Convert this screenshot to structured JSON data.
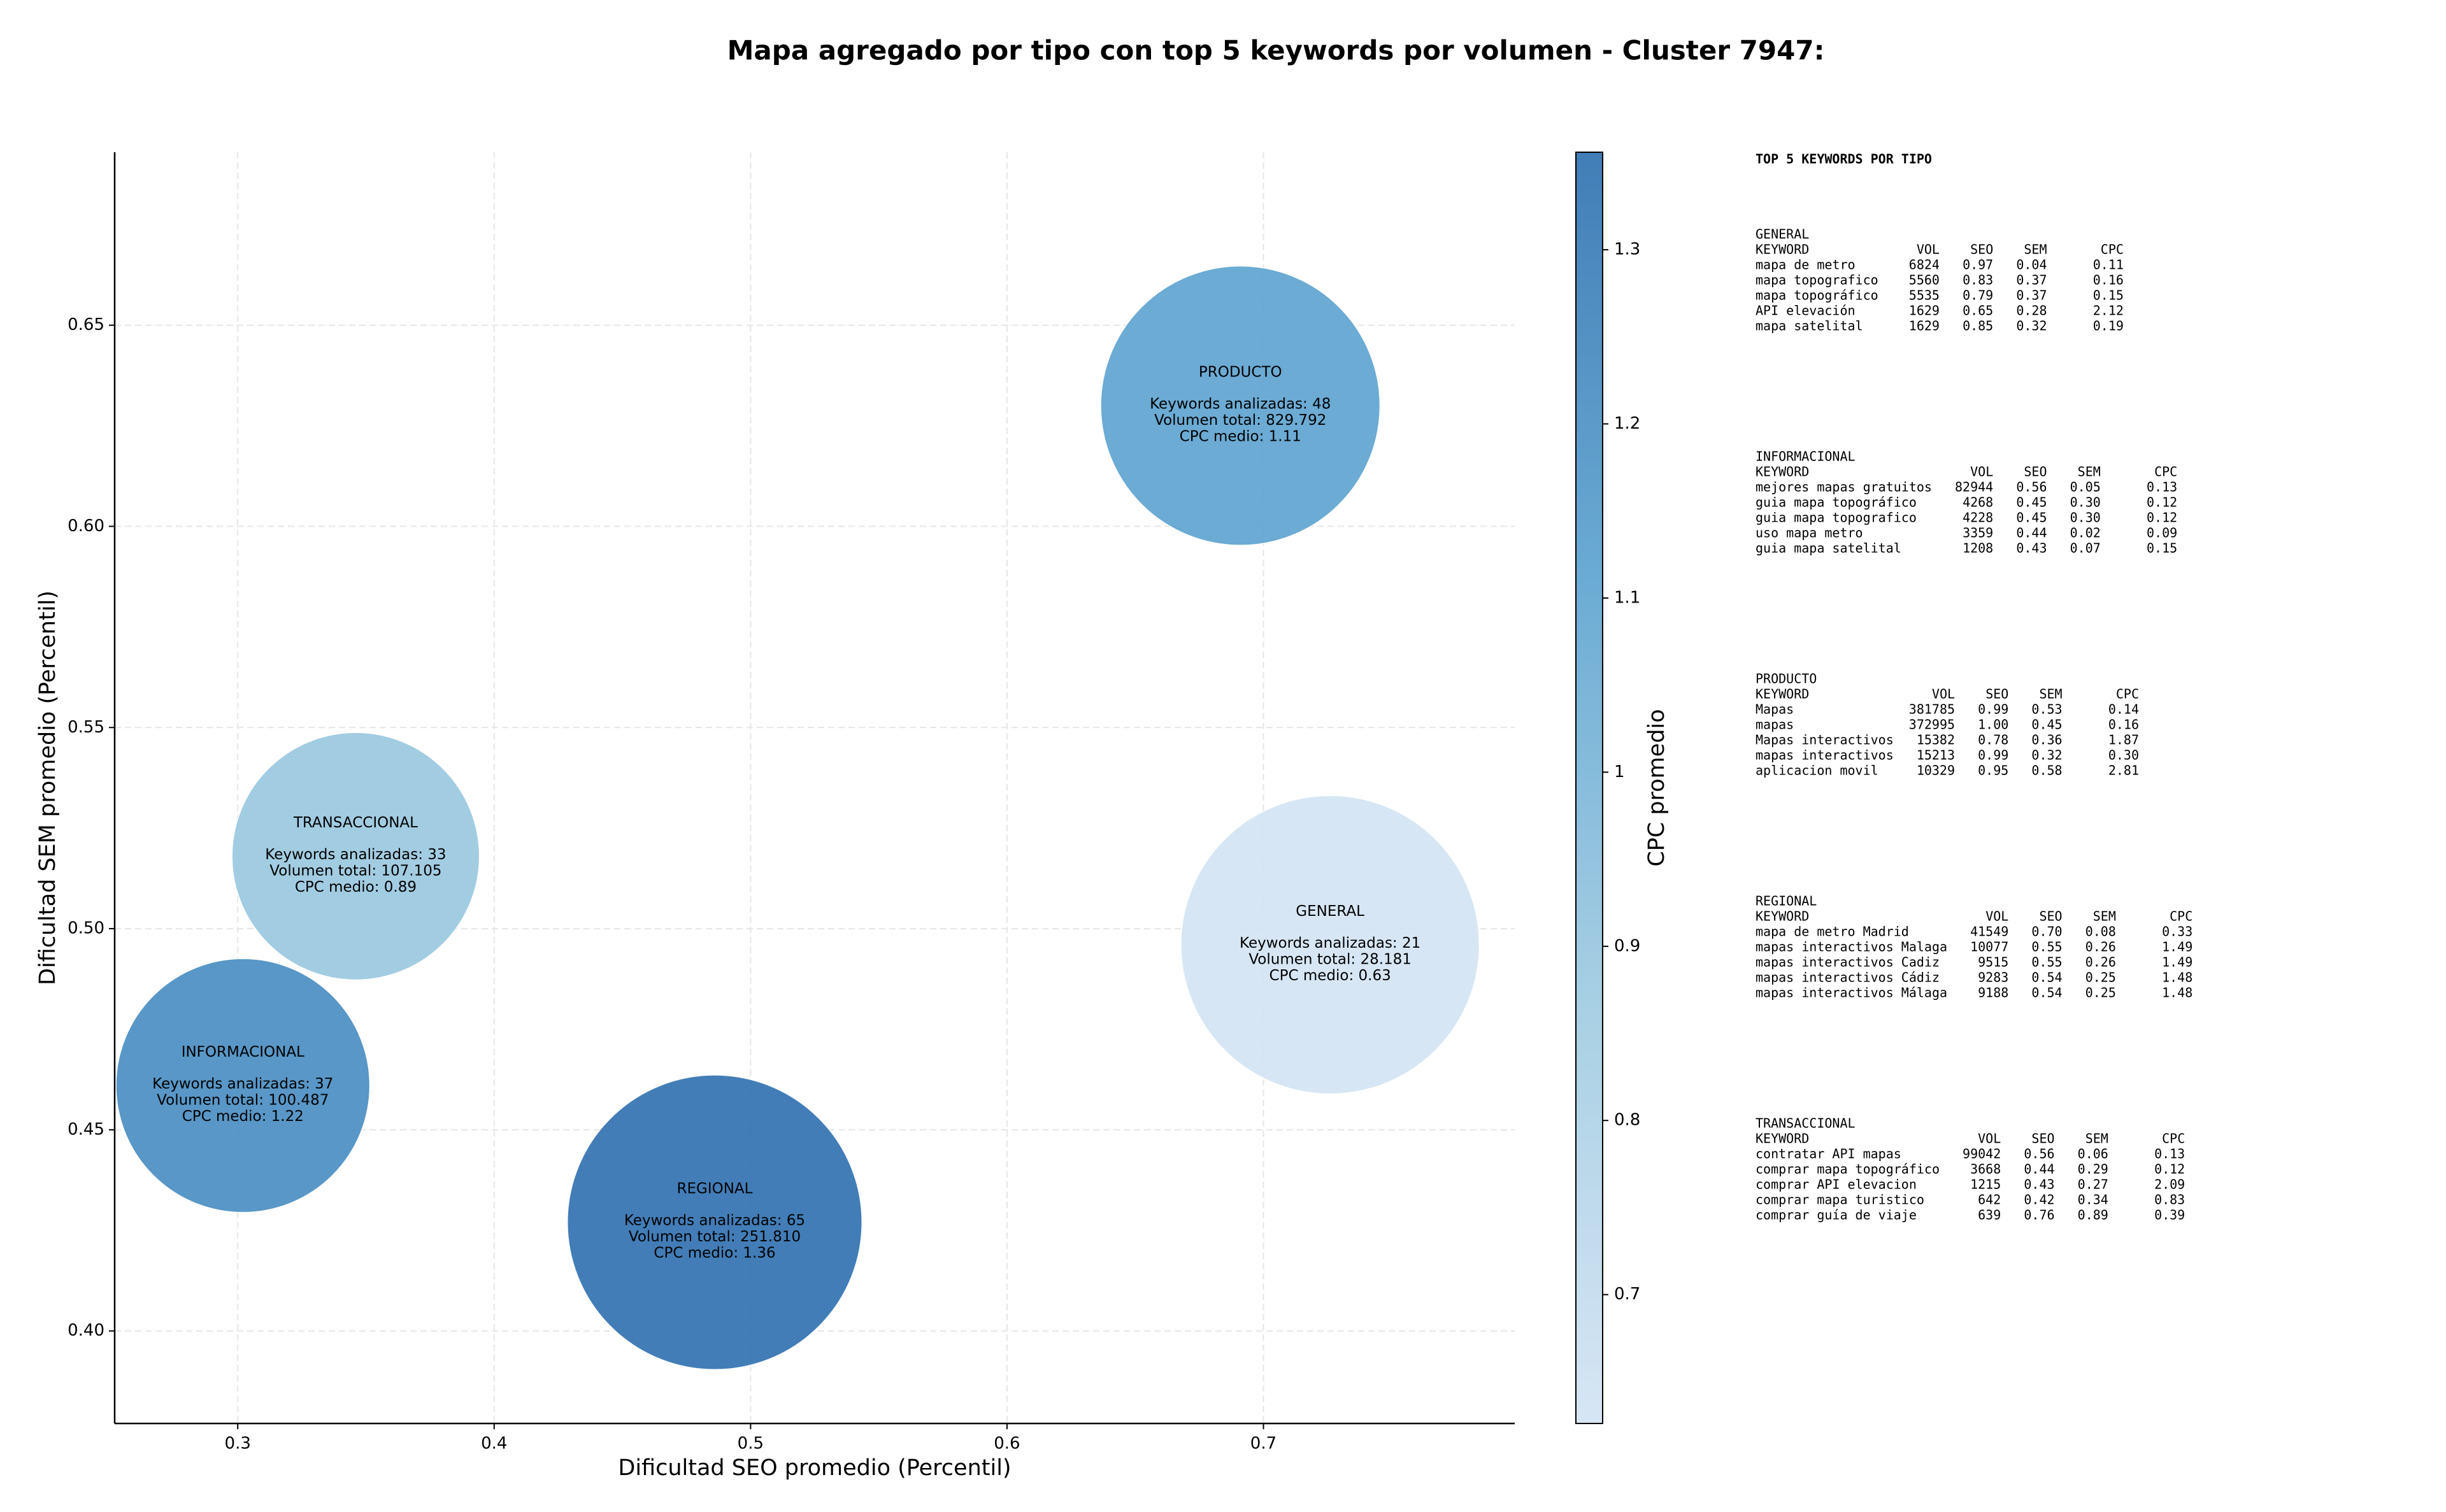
{
  "chart_data": {
    "type": "bubble",
    "title": "Mapa agregado por tipo con top 5 keywords por volumen - Cluster 7947:",
    "x_label": "Dificultad SEO promedio (Percentil)",
    "y_label": "Dificultad SEM promedio (Percentil)",
    "xlim": [
      0.252,
      0.798
    ],
    "ylim": [
      0.377,
      0.693
    ],
    "xticks": [
      0.3,
      0.4,
      0.5,
      0.6,
      0.7
    ],
    "yticks": [
      {
        "value": 0.4,
        "label": "0.40"
      },
      {
        "value": 0.45,
        "label": "0.45"
      },
      {
        "value": 0.5,
        "label": "0.50"
      },
      {
        "value": 0.55,
        "label": "0.55"
      },
      {
        "value": 0.6,
        "label": "0.60"
      },
      {
        "value": 0.65,
        "label": "0.65"
      }
    ],
    "grid": true,
    "points": [
      {
        "name": "PRODUCTO",
        "x": 0.691,
        "y": 0.63,
        "size": 219,
        "cpc": 1.11,
        "lines": [
          "Keywords analizadas: 48",
          "Volumen total: 829.792",
          "CPC medio: 1.11"
        ]
      },
      {
        "name": "GENERAL",
        "x": 0.726,
        "y": 0.496,
        "size": 234,
        "cpc": 0.63,
        "lines": [
          "Keywords analizadas: 21",
          "Volumen total: 28.181",
          "CPC medio: 0.63"
        ]
      },
      {
        "name": "TRANSACCIONAL",
        "x": 0.346,
        "y": 0.518,
        "size": 194,
        "cpc": 0.89,
        "lines": [
          "Keywords analizadas: 33",
          "Volumen total: 107.105",
          "CPC medio: 0.89"
        ]
      },
      {
        "name": "INFORMACIONAL",
        "x": 0.302,
        "y": 0.461,
        "size": 199,
        "cpc": 1.22,
        "lines": [
          "Keywords analizadas: 37",
          "Volumen total: 100.487",
          "CPC medio: 1.22"
        ]
      },
      {
        "name": "REGIONAL",
        "x": 0.486,
        "y": 0.427,
        "size": 231,
        "cpc": 1.36,
        "lines": [
          "Keywords analizadas: 65",
          "Volumen total: 251.810",
          "CPC medio: 1.36"
        ]
      }
    ],
    "colorbar": {
      "label": "CPC promedio",
      "lim": [
        0.626,
        1.356
      ],
      "ticks": [
        0.7,
        0.8,
        0.9,
        1.0,
        1.1,
        1.2,
        1.3
      ],
      "colors": [
        "#d3e3f3",
        "#9ecae1",
        "#5aa2cf",
        "#2d6faf"
      ]
    },
    "side_panel": {
      "title": "TOP 5 KEYWORDS POR TIPO",
      "header": [
        "KEYWORD",
        "VOL",
        "SEO",
        "SEM",
        "CPC"
      ],
      "groups": [
        {
          "name": "GENERAL",
          "rows": [
            [
              "mapa de metro",
              "6824",
              "0.97",
              "0.04",
              "0.11"
            ],
            [
              "mapa topografico",
              "5560",
              "0.83",
              "0.37",
              "0.16"
            ],
            [
              "mapa topográfico",
              "5535",
              "0.79",
              "0.37",
              "0.15"
            ],
            [
              "API elevación",
              "1629",
              "0.65",
              "0.28",
              "2.12"
            ],
            [
              "mapa satelital",
              "1629",
              "0.85",
              "0.32",
              "0.19"
            ]
          ]
        },
        {
          "name": "INFORMACIONAL",
          "rows": [
            [
              "mejores mapas gratuitos",
              "82944",
              "0.56",
              "0.05",
              "0.13"
            ],
            [
              "guia mapa topográfico",
              "4268",
              "0.45",
              "0.30",
              "0.12"
            ],
            [
              "guia mapa topografico",
              "4228",
              "0.45",
              "0.30",
              "0.12"
            ],
            [
              "uso mapa metro",
              "3359",
              "0.44",
              "0.02",
              "0.09"
            ],
            [
              "guia mapa satelital",
              "1208",
              "0.43",
              "0.07",
              "0.15"
            ]
          ]
        },
        {
          "name": "PRODUCTO",
          "rows": [
            [
              "Mapas",
              "381785",
              "0.99",
              "0.53",
              "0.14"
            ],
            [
              "mapas",
              "372995",
              "1.00",
              "0.45",
              "0.16"
            ],
            [
              "Mapas interactivos",
              "15382",
              "0.78",
              "0.36",
              "1.87"
            ],
            [
              "mapas interactivos",
              "15213",
              "0.99",
              "0.32",
              "0.30"
            ],
            [
              "aplicacion movil",
              "10329",
              "0.95",
              "0.58",
              "2.81"
            ]
          ]
        },
        {
          "name": "REGIONAL",
          "rows": [
            [
              "mapa de metro Madrid",
              "41549",
              "0.70",
              "0.08",
              "0.33"
            ],
            [
              "mapas interactivos Malaga",
              "10077",
              "0.55",
              "0.26",
              "1.49"
            ],
            [
              "mapas interactivos Cadiz",
              "9515",
              "0.55",
              "0.26",
              "1.49"
            ],
            [
              "mapas interactivos Cádiz",
              "9283",
              "0.54",
              "0.25",
              "1.48"
            ],
            [
              "mapas interactivos Málaga",
              "9188",
              "0.54",
              "0.25",
              "1.48"
            ]
          ]
        },
        {
          "name": "TRANSACCIONAL",
          "rows": [
            [
              "contratar API mapas",
              "99042",
              "0.56",
              "0.06",
              "0.13"
            ],
            [
              "comprar mapa topográfico",
              "3668",
              "0.44",
              "0.29",
              "0.12"
            ],
            [
              "comprar API elevacion",
              "1215",
              "0.43",
              "0.27",
              "2.09"
            ],
            [
              "comprar mapa turistico",
              "642",
              "0.42",
              "0.34",
              "0.83"
            ],
            [
              "comprar guía de viaje",
              "639",
              "0.76",
              "0.89",
              "0.39"
            ]
          ]
        }
      ]
    }
  }
}
